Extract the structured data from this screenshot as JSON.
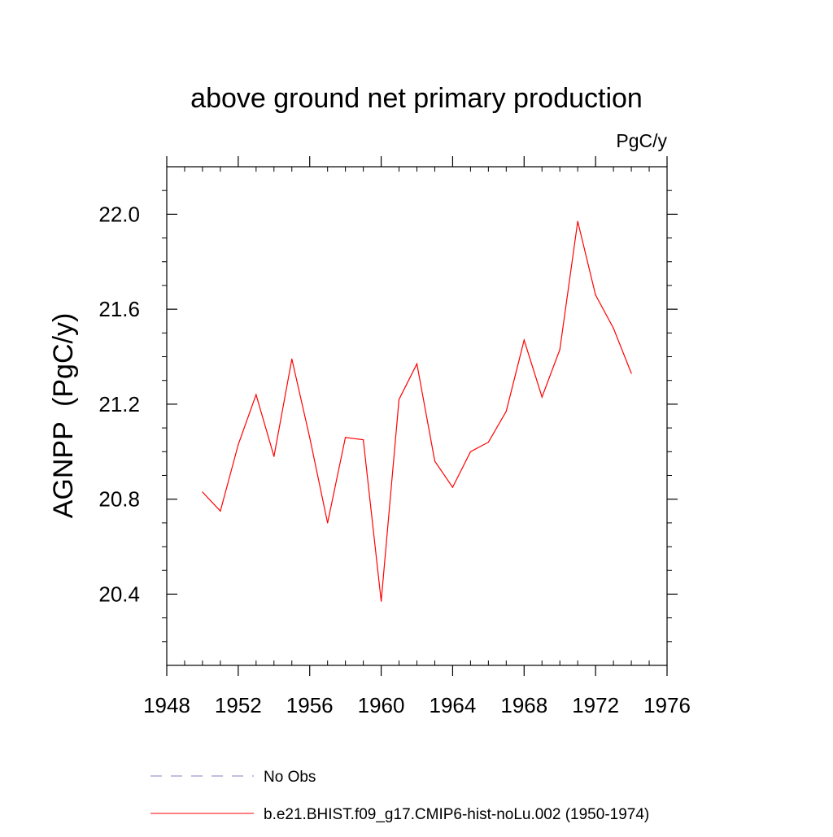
{
  "chart_data": {
    "type": "line",
    "title": "above ground net primary production",
    "units_label": "PgC/y",
    "ylabel": "AGNPP  (PgC/y)",
    "xlabel": "",
    "xlim": [
      1948,
      1976
    ],
    "ylim": [
      20.1,
      22.2
    ],
    "x_ticks": [
      1948,
      1952,
      1956,
      1960,
      1964,
      1968,
      1972,
      1976
    ],
    "x_tick_labels": [
      "1948",
      "1952",
      "1956",
      "1960",
      "1964",
      "1968",
      "1972",
      "1976"
    ],
    "y_ticks": [
      20.4,
      20.8,
      21.2,
      21.6,
      22.0
    ],
    "y_tick_labels": [
      "20.4",
      "20.8",
      "21.2",
      "21.6",
      "22.0"
    ],
    "grid": false,
    "legend_position": "bottom",
    "series": [
      {
        "name": "b.e21.BHIST.f09_g17.CMIP6-hist-noLu.002 (1950-1974)",
        "color": "#ff0000",
        "style": "solid",
        "x": [
          1950,
          1951,
          1952,
          1953,
          1954,
          1955,
          1956,
          1957,
          1958,
          1959,
          1960,
          1961,
          1962,
          1963,
          1964,
          1965,
          1966,
          1967,
          1968,
          1969,
          1970,
          1971,
          1972,
          1973,
          1974
        ],
        "y": [
          20.83,
          20.75,
          21.03,
          21.24,
          20.98,
          21.39,
          21.06,
          20.7,
          21.06,
          21.05,
          20.37,
          21.22,
          21.37,
          20.96,
          20.85,
          21.0,
          21.04,
          21.17,
          21.47,
          21.23,
          21.43,
          21.97,
          21.66,
          21.52,
          21.33
        ]
      }
    ],
    "legend": [
      {
        "label": "No Obs",
        "color": "#8080c0",
        "style": "dashed"
      },
      {
        "label": "b.e21.BHIST.f09_g17.CMIP6-hist-noLu.002 (1950-1974)",
        "color": "#ff0000",
        "style": "solid"
      }
    ]
  }
}
